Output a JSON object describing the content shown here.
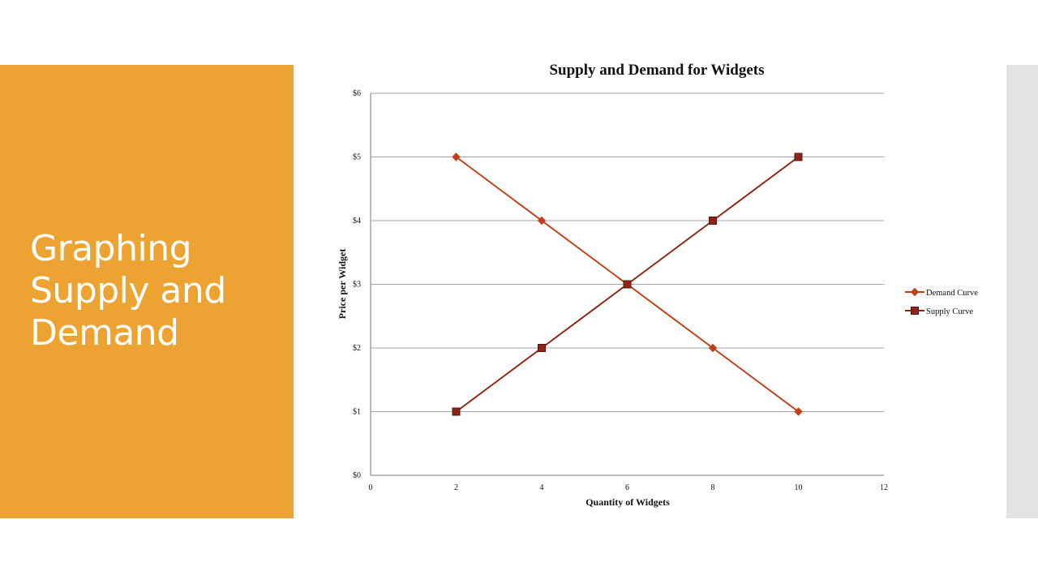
{
  "slide": {
    "title": "Graphing Supply and Demand"
  },
  "colors": {
    "panel": "#eda331",
    "strip": "#e3e3e3",
    "demand": "#c0401a",
    "supply": "#8f2418"
  },
  "chart_data": {
    "type": "line",
    "title": "Supply and Demand for Widgets",
    "xlabel": "Quantity of Widgets",
    "ylabel": "Price per Widget",
    "xlim": [
      0,
      12
    ],
    "ylim": [
      0,
      6
    ],
    "x_ticks": [
      0,
      2,
      4,
      6,
      8,
      10,
      12
    ],
    "y_ticks": [
      0,
      1,
      2,
      3,
      4,
      5,
      6
    ],
    "y_tick_labels": [
      "$0",
      "$1",
      "$2",
      "$3",
      "$4",
      "$5",
      "$6"
    ],
    "grid": "horizontal",
    "legend_position": "right",
    "series": [
      {
        "name": "Demand Curve",
        "marker": "diamond",
        "x": [
          2,
          4,
          6,
          8,
          10
        ],
        "y": [
          5,
          4,
          3,
          2,
          1
        ]
      },
      {
        "name": "Supply Curve",
        "marker": "square",
        "x": [
          2,
          4,
          6,
          8,
          10
        ],
        "y": [
          1,
          2,
          3,
          4,
          5
        ]
      }
    ]
  }
}
